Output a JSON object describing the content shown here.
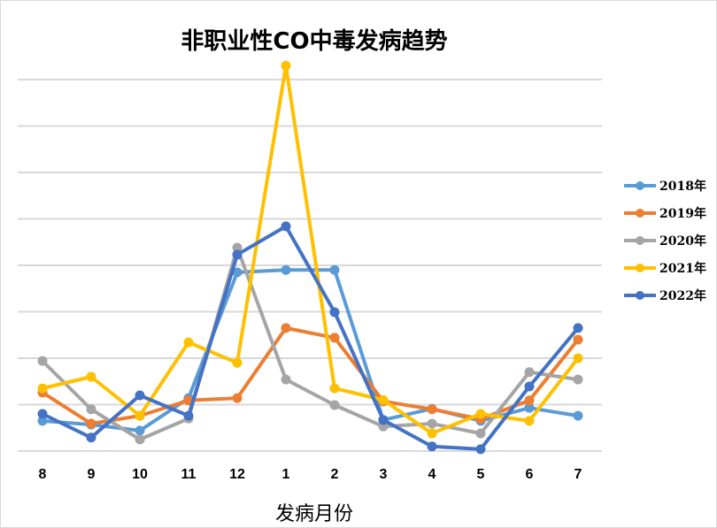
{
  "chart_data": {
    "type": "line",
    "title": "非职业性CO中毒发病趋势",
    "xlabel": "发病月份",
    "ylabel": "",
    "categories": [
      "8",
      "9",
      "10",
      "11",
      "12",
      "1",
      "2",
      "3",
      "4",
      "5",
      "6",
      "7"
    ],
    "ylim": [
      0,
      8.5
    ],
    "grid": true,
    "y_tick_labels_shown": false,
    "legend_position": "right",
    "series": [
      {
        "name": "2018年",
        "color": "#5B9BD5",
        "values": [
          0.65,
          0.57,
          0.44,
          1.14,
          3.85,
          3.9,
          3.9,
          0.67,
          0.91,
          0.65,
          0.93,
          0.76
        ]
      },
      {
        "name": "2019年",
        "color": "#ED7D31",
        "values": [
          1.26,
          0.59,
          0.76,
          1.09,
          1.14,
          2.65,
          2.44,
          1.07,
          0.9,
          0.69,
          1.09,
          2.4
        ]
      },
      {
        "name": "2020年",
        "color": "#A5A5A5",
        "values": [
          1.94,
          0.9,
          0.25,
          0.7,
          4.38,
          1.54,
          0.99,
          0.53,
          0.59,
          0.38,
          1.7,
          1.54
        ]
      },
      {
        "name": "2021年",
        "color": "#FFC000",
        "values": [
          1.35,
          1.6,
          0.76,
          2.34,
          1.9,
          8.3,
          1.35,
          1.1,
          0.38,
          0.8,
          0.65,
          2.0
        ]
      },
      {
        "name": "2022年",
        "color": "#4472C4",
        "values": [
          0.8,
          0.29,
          1.2,
          0.76,
          4.23,
          4.84,
          2.99,
          0.67,
          0.1,
          0.04,
          1.39,
          2.65
        ]
      }
    ]
  }
}
